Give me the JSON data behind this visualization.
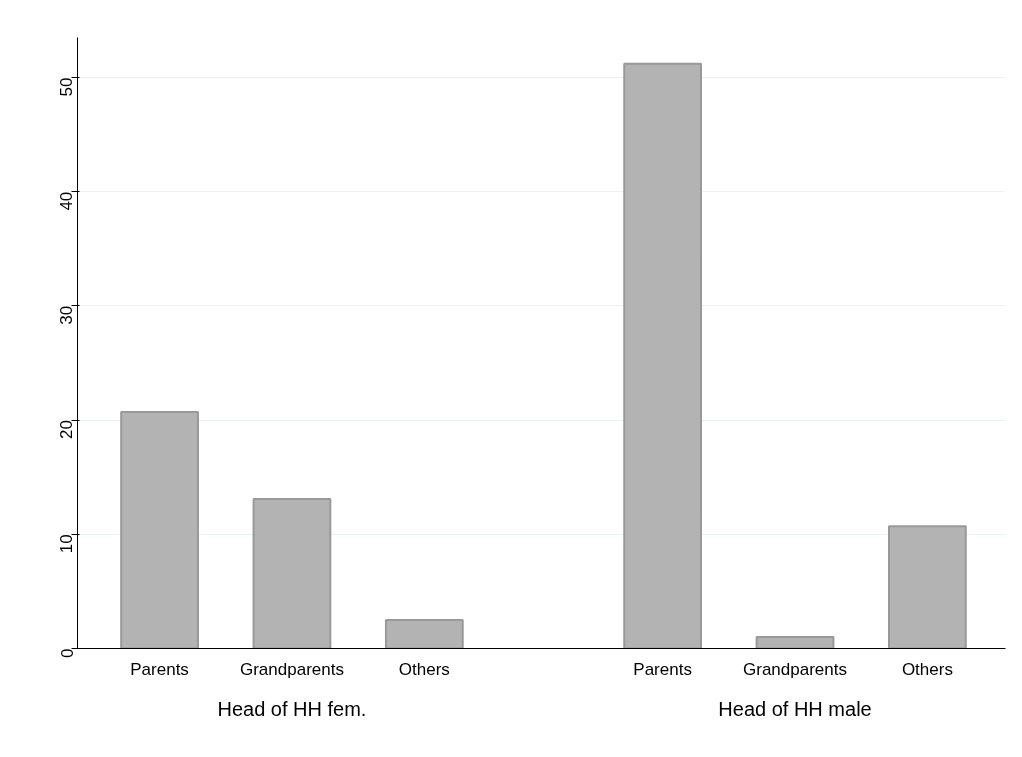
{
  "chart_data": {
    "type": "bar",
    "categories": [
      "Parents",
      "Grandparents",
      "Others",
      "Parents",
      "Grandparents",
      "Others"
    ],
    "values": [
      20.7,
      13.1,
      2.5,
      51.2,
      1.0,
      10.7
    ],
    "color": "#b3b3b3",
    "ylim": [
      0,
      53.5
    ],
    "yticks": [
      0,
      10,
      20,
      30,
      40,
      50
    ],
    "grid": "y",
    "annotations": [
      "Head of HH fem.",
      "Head of HH male"
    ]
  }
}
